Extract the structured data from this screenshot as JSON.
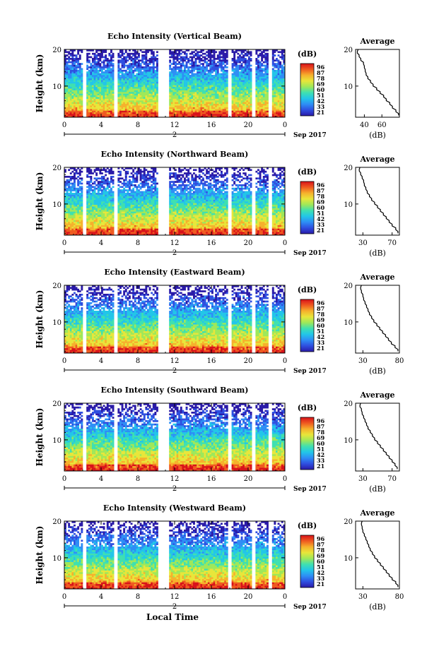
{
  "figure": {
    "xlabel_bottom": "Local Time",
    "date_label": "Sep 2017",
    "day_marker": "2",
    "cbar_unit": "(dB)",
    "avg_title": "Average",
    "avg_xlabel": "(dB)",
    "ylabel": "Height (km)"
  },
  "chart_data": [
    {
      "type": "heatmap",
      "title": "Echo Intensity (Vertical Beam)",
      "ylabel": "Height (km)",
      "x_ticks": [
        "0",
        "4",
        "8",
        "12",
        "16",
        "20",
        "0"
      ],
      "y_ticks": [
        "10",
        "20"
      ],
      "xlim": [
        0,
        24
      ],
      "ylim": [
        1.5,
        20
      ],
      "colorbar_ticks": [
        "96",
        "87",
        "78",
        "69",
        "60",
        "51",
        "42",
        "33",
        "21"
      ],
      "gaps_hours": [
        [
          2.0,
          2.4
        ],
        [
          5.3,
          5.8
        ],
        [
          10.2,
          11.3
        ],
        [
          17.7,
          18.1
        ],
        [
          20.3,
          20.6
        ],
        [
          22.2,
          22.6
        ]
      ],
      "average_profile": {
        "xlim": [
          30,
          80
        ],
        "x_ticks": [
          "40",
          "60"
        ],
        "ylim": [
          1.5,
          20
        ],
        "y_ticks": [
          "10",
          "20"
        ],
        "height_km": [
          2,
          3,
          4,
          5,
          6,
          7,
          8,
          9,
          10,
          11,
          12,
          13,
          14,
          15,
          16,
          17,
          18,
          19,
          20
        ],
        "value_db": [
          79,
          76,
          72,
          69,
          65,
          62,
          58,
          54,
          50,
          47,
          44,
          42,
          41,
          40,
          39,
          36,
          34,
          32,
          33
        ]
      }
    },
    {
      "type": "heatmap",
      "title": "Echo Intensity (Northward Beam)",
      "ylabel": "Height (km)",
      "x_ticks": [
        "0",
        "4",
        "8",
        "12",
        "16",
        "20",
        "0"
      ],
      "y_ticks": [
        "10",
        "20"
      ],
      "xlim": [
        0,
        24
      ],
      "ylim": [
        1.5,
        20
      ],
      "colorbar_ticks": [
        "96",
        "87",
        "78",
        "69",
        "60",
        "51",
        "42",
        "33",
        "21"
      ],
      "gaps_hours": [
        [
          2.0,
          2.4
        ],
        [
          5.3,
          5.8
        ],
        [
          10.2,
          11.3
        ],
        [
          17.7,
          18.1
        ],
        [
          20.3,
          20.6
        ],
        [
          22.2,
          22.6
        ]
      ],
      "average_profile": {
        "xlim": [
          20,
          80
        ],
        "x_ticks": [
          "30",
          "70"
        ],
        "ylim": [
          1.5,
          20
        ],
        "y_ticks": [
          "10",
          "20"
        ],
        "height_km": [
          2,
          3,
          4,
          5,
          6,
          7,
          8,
          9,
          10,
          11,
          12,
          13,
          14,
          15,
          16,
          17,
          18,
          19,
          20
        ],
        "value_db": [
          78,
          75,
          70,
          66,
          62,
          58,
          54,
          50,
          46,
          42,
          39,
          36,
          34,
          32,
          31,
          29,
          27,
          25,
          26
        ]
      }
    },
    {
      "type": "heatmap",
      "title": "Echo Intensity (Eastward Beam)",
      "ylabel": "Height (km)",
      "x_ticks": [
        "0",
        "4",
        "8",
        "12",
        "16",
        "20",
        "0"
      ],
      "y_ticks": [
        "10",
        "20"
      ],
      "xlim": [
        0,
        24
      ],
      "ylim": [
        1.5,
        20
      ],
      "colorbar_ticks": [
        "96",
        "87",
        "78",
        "69",
        "60",
        "51",
        "42",
        "33",
        "21"
      ],
      "gaps_hours": [
        [
          2.0,
          2.4
        ],
        [
          5.3,
          5.8
        ],
        [
          10.2,
          11.3
        ],
        [
          17.7,
          18.1
        ],
        [
          20.3,
          20.6
        ],
        [
          22.2,
          22.6
        ]
      ],
      "average_profile": {
        "xlim": [
          20,
          80
        ],
        "x_ticks": [
          "30",
          "80"
        ],
        "ylim": [
          1.5,
          20
        ],
        "y_ticks": [
          "10",
          "20"
        ],
        "height_km": [
          2,
          3,
          4,
          5,
          6,
          7,
          8,
          9,
          10,
          11,
          12,
          13,
          14,
          15,
          16,
          17,
          18,
          19,
          20
        ],
        "value_db": [
          78,
          74,
          69,
          65,
          61,
          57,
          53,
          49,
          45,
          42,
          39,
          37,
          35,
          33,
          31,
          30,
          28,
          27,
          28
        ]
      }
    },
    {
      "type": "heatmap",
      "title": "Echo Intensity (Southward Beam)",
      "ylabel": "Height (km)",
      "x_ticks": [
        "0",
        "4",
        "8",
        "12",
        "16",
        "20",
        "0"
      ],
      "y_ticks": [
        "10",
        "20"
      ],
      "xlim": [
        0,
        24
      ],
      "ylim": [
        1.5,
        20
      ],
      "colorbar_ticks": [
        "96",
        "87",
        "78",
        "69",
        "60",
        "51",
        "42",
        "33",
        "21"
      ],
      "gaps_hours": [
        [
          2.0,
          2.4
        ],
        [
          5.3,
          5.8
        ],
        [
          10.2,
          11.3
        ],
        [
          17.7,
          18.1
        ],
        [
          20.3,
          20.6
        ],
        [
          22.2,
          22.6
        ]
      ],
      "average_profile": {
        "xlim": [
          20,
          80
        ],
        "x_ticks": [
          "30",
          "70"
        ],
        "ylim": [
          1.5,
          20
        ],
        "y_ticks": [
          "10",
          "20"
        ],
        "height_km": [
          2,
          3,
          4,
          5,
          6,
          7,
          8,
          9,
          10,
          11,
          12,
          13,
          14,
          15,
          16,
          17,
          18,
          19,
          20
        ],
        "value_db": [
          77,
          74,
          70,
          66,
          62,
          58,
          54,
          50,
          46,
          43,
          40,
          37,
          35,
          33,
          31,
          29,
          28,
          26,
          27
        ]
      }
    },
    {
      "type": "heatmap",
      "title": "Echo Intensity (Westward Beam)",
      "ylabel": "Height (km)",
      "x_ticks": [
        "0",
        "4",
        "8",
        "12",
        "16",
        "20",
        "0"
      ],
      "y_ticks": [
        "10",
        "20"
      ],
      "xlim": [
        0,
        24
      ],
      "ylim": [
        1.5,
        20
      ],
      "colorbar_ticks": [
        "96",
        "87",
        "78",
        "69",
        "60",
        "51",
        "42",
        "33",
        "21"
      ],
      "gaps_hours": [
        [
          2.0,
          2.4
        ],
        [
          5.3,
          5.8
        ],
        [
          10.2,
          11.3
        ],
        [
          17.7,
          18.1
        ],
        [
          20.3,
          20.6
        ],
        [
          22.2,
          22.6
        ]
      ],
      "average_profile": {
        "xlim": [
          20,
          80
        ],
        "x_ticks": [
          "30",
          "80"
        ],
        "ylim": [
          1.5,
          20
        ],
        "y_ticks": [
          "10",
          "20"
        ],
        "height_km": [
          2,
          3,
          4,
          5,
          6,
          7,
          8,
          9,
          10,
          11,
          12,
          13,
          14,
          15,
          16,
          17,
          18,
          19,
          20
        ],
        "value_db": [
          78,
          75,
          70,
          66,
          62,
          58,
          54,
          50,
          46,
          43,
          40,
          38,
          36,
          34,
          32,
          30,
          29,
          28,
          29
        ]
      }
    }
  ],
  "colorbar_colors": [
    "#2a1aa8",
    "#2f4fe0",
    "#2e8ef5",
    "#22c6e8",
    "#3fe0b0",
    "#9ee85a",
    "#e8e63a",
    "#f6b12c",
    "#ef5a20",
    "#d8121a"
  ]
}
